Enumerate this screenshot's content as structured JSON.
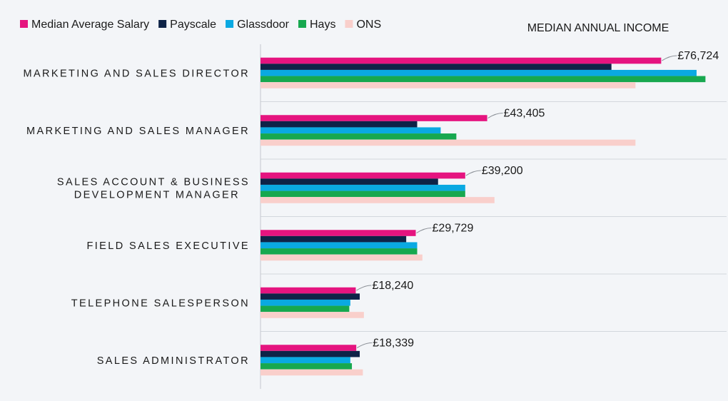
{
  "chart_data": {
    "type": "bar",
    "orientation": "horizontal",
    "title": "MEDIAN ANNUAL INCOME",
    "categories": [
      [
        "MARKETING AND SALES DIRECTOR"
      ],
      [
        "MARKETING AND SALES MANAGER"
      ],
      [
        "SALES ACCOUNT & BUSINESS",
        "DEVELOPMENT MANAGER"
      ],
      [
        "FIELD SALES EXECUTIVE"
      ],
      [
        "TELEPHONE SALESPERSON"
      ],
      [
        "SALES ADMINISTRATOR"
      ]
    ],
    "series": [
      {
        "name": "Median Average Salary",
        "color": "#e5147f",
        "values": [
          76724,
          43405,
          39200,
          29729,
          18240,
          18339
        ]
      },
      {
        "name": "Payscale",
        "color": "#0e2347",
        "values": [
          67200,
          30000,
          34000,
          27900,
          19000,
          19000
        ]
      },
      {
        "name": "Glassdoor",
        "color": "#0aa9e2",
        "values": [
          83500,
          34500,
          39200,
          30000,
          17200,
          17200
        ]
      },
      {
        "name": "Hays",
        "color": "#17a84f",
        "values": [
          85200,
          37500,
          39200,
          30000,
          17000,
          17500
        ]
      },
      {
        "name": "ONS",
        "color": "#f9cfcb",
        "values": [
          71800,
          71800,
          44800,
          31000,
          19800,
          19600
        ]
      }
    ],
    "data_labels": [
      "£76,724",
      "£43,405",
      "£39,200",
      "£29,729",
      "£18,240",
      "£18,339"
    ],
    "xlim": [
      0,
      90000
    ],
    "legend": "top-left",
    "grid": "horizontal-separators"
  }
}
